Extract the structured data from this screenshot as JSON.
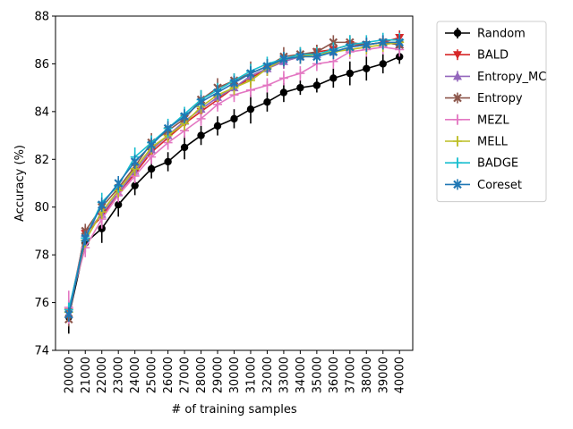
{
  "chart_data": {
    "type": "line",
    "title": "",
    "xlabel": "# of training samples",
    "ylabel": "Accuracy (%)",
    "ylim": [
      74,
      88
    ],
    "yticks": [
      74,
      76,
      78,
      80,
      82,
      84,
      86,
      88
    ],
    "x": [
      20000,
      21000,
      22000,
      23000,
      24000,
      25000,
      26000,
      27000,
      28000,
      29000,
      30000,
      31000,
      32000,
      33000,
      34000,
      35000,
      36000,
      37000,
      38000,
      39000,
      40000
    ],
    "grid": false,
    "legend_position": "outside-right-top",
    "series": [
      {
        "name": "Random",
        "color": "#000000",
        "marker": "circle",
        "values": [
          75.4,
          78.5,
          79.1,
          80.1,
          80.9,
          81.6,
          81.9,
          82.5,
          83.0,
          83.4,
          83.7,
          84.1,
          84.4,
          84.8,
          85.0,
          85.1,
          85.4,
          85.6,
          85.8,
          86.0,
          86.3
        ],
        "errors": [
          0.7,
          0.4,
          0.6,
          0.5,
          0.4,
          0.4,
          0.4,
          0.5,
          0.4,
          0.4,
          0.4,
          0.6,
          0.4,
          0.4,
          0.3,
          0.3,
          0.4,
          0.5,
          0.5,
          0.4,
          0.3
        ]
      },
      {
        "name": "BALD",
        "color": "#d62728",
        "marker": "triangle-down",
        "values": [
          75.6,
          78.9,
          79.6,
          80.6,
          81.4,
          82.3,
          82.9,
          83.5,
          84.0,
          84.5,
          85.0,
          85.4,
          85.8,
          86.1,
          86.3,
          86.5,
          86.6,
          86.8,
          86.8,
          86.9,
          87.1
        ],
        "errors": [
          0.3,
          0.3,
          0.3,
          0.3,
          0.3,
          0.3,
          0.3,
          0.3,
          0.3,
          0.3,
          0.3,
          0.3,
          0.3,
          0.3,
          0.3,
          0.3,
          0.3,
          0.3,
          0.3,
          0.3,
          0.3
        ]
      },
      {
        "name": "Entropy_MC",
        "color": "#9467bd",
        "marker": "triangle-up",
        "values": [
          75.5,
          78.9,
          79.7,
          80.6,
          81.5,
          82.4,
          83.0,
          83.6,
          84.1,
          84.6,
          85.0,
          85.5,
          85.8,
          86.1,
          86.3,
          86.4,
          86.5,
          86.7,
          86.8,
          86.9,
          86.8
        ],
        "errors": [
          0.3,
          0.3,
          0.3,
          0.3,
          0.3,
          0.3,
          0.3,
          0.3,
          0.3,
          0.3,
          0.3,
          0.3,
          0.3,
          0.3,
          0.3,
          0.3,
          0.3,
          0.3,
          0.3,
          0.3,
          0.3
        ]
      },
      {
        "name": "Entropy",
        "color": "#8c564b",
        "marker": "x",
        "values": [
          75.3,
          79.0,
          80.0,
          80.8,
          81.7,
          82.7,
          83.2,
          83.7,
          84.5,
          85.0,
          85.3,
          85.6,
          85.9,
          86.3,
          86.4,
          86.5,
          86.9,
          86.9,
          86.8,
          86.9,
          86.8
        ],
        "errors": [
          0.3,
          0.3,
          0.3,
          0.3,
          0.3,
          0.4,
          0.3,
          0.3,
          0.4,
          0.4,
          0.3,
          0.5,
          0.3,
          0.4,
          0.3,
          0.3,
          0.3,
          0.3,
          0.3,
          0.3,
          0.3
        ]
      },
      {
        "name": "MEZL",
        "color": "#e377c2",
        "marker": "plus",
        "values": [
          75.8,
          78.3,
          79.5,
          80.5,
          81.3,
          82.1,
          82.7,
          83.2,
          83.7,
          84.3,
          84.7,
          84.9,
          85.1,
          85.4,
          85.6,
          86.0,
          86.1,
          86.5,
          86.6,
          86.7,
          86.6
        ],
        "errors": [
          0.7,
          0.4,
          0.4,
          0.3,
          0.3,
          0.3,
          0.3,
          0.3,
          0.3,
          0.3,
          0.3,
          0.3,
          0.3,
          0.3,
          0.3,
          0.3,
          0.3,
          0.3,
          0.3,
          0.3,
          0.3
        ]
      },
      {
        "name": "MELL",
        "color": "#bcbd22",
        "marker": "plus",
        "values": [
          75.6,
          78.6,
          79.8,
          80.7,
          81.6,
          82.5,
          83.0,
          83.5,
          84.2,
          84.7,
          85.0,
          85.3,
          85.8,
          86.2,
          86.3,
          86.4,
          86.5,
          86.6,
          86.7,
          86.8,
          86.9
        ],
        "errors": [
          0.3,
          0.3,
          0.3,
          0.3,
          0.3,
          0.3,
          0.3,
          0.3,
          0.3,
          0.3,
          0.3,
          0.3,
          0.3,
          0.3,
          0.3,
          0.3,
          0.3,
          0.3,
          0.3,
          0.3,
          0.3
        ]
      },
      {
        "name": "BADGE",
        "color": "#17becf",
        "marker": "plus",
        "values": [
          75.7,
          78.7,
          80.2,
          80.9,
          82.1,
          82.7,
          83.3,
          83.9,
          84.5,
          84.9,
          85.3,
          85.7,
          86.0,
          86.2,
          86.4,
          86.4,
          86.6,
          86.8,
          86.9,
          87.0,
          87.0
        ],
        "errors": [
          0.3,
          0.3,
          0.4,
          0.3,
          0.4,
          0.3,
          0.4,
          0.3,
          0.4,
          0.3,
          0.3,
          0.3,
          0.3,
          0.3,
          0.3,
          0.3,
          0.3,
          0.4,
          0.3,
          0.3,
          0.3
        ]
      },
      {
        "name": "Coreset",
        "color": "#1f77b4",
        "marker": "x",
        "values": [
          75.5,
          78.7,
          80.1,
          81.0,
          81.9,
          82.6,
          83.3,
          83.8,
          84.4,
          84.8,
          85.2,
          85.6,
          85.9,
          86.2,
          86.3,
          86.3,
          86.5,
          86.7,
          86.8,
          86.9,
          86.9
        ],
        "errors": [
          0.3,
          0.3,
          0.3,
          0.3,
          0.3,
          0.3,
          0.3,
          0.3,
          0.3,
          0.3,
          0.3,
          0.3,
          0.3,
          0.3,
          0.3,
          0.3,
          0.3,
          0.3,
          0.3,
          0.3,
          0.3
        ]
      }
    ]
  }
}
